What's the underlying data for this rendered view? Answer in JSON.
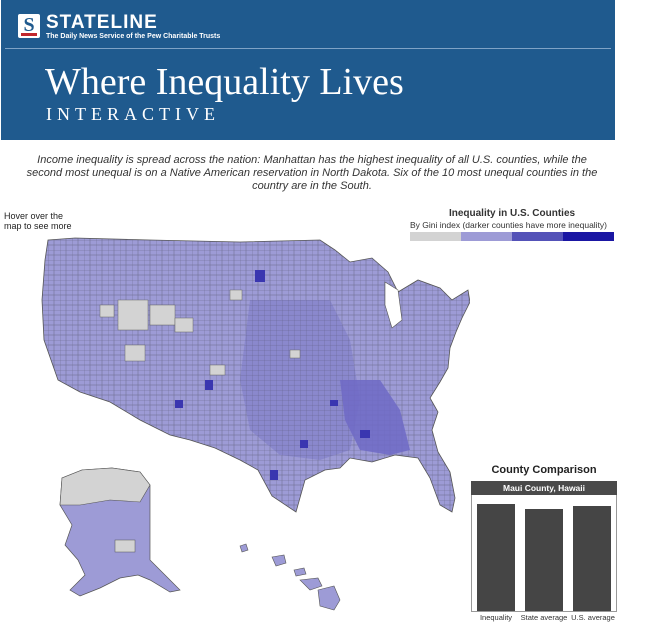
{
  "header": {
    "brand": "STATELINE",
    "tagline": "The Daily News Service of the Pew Charitable Trusts",
    "title": "Where Inequality Lives",
    "subtitle": "INTERACTIVE",
    "background": "#1f5a8e"
  },
  "intro_text": "Income inequality is spread across the nation: Manhattan has the highest inequality of all U.S. counties, while the second most unequal is on a Native American reservation in North Dakota. Six of the 10 most unequal counties in the country are in the South.",
  "hover_note": "Hover over the map to see more information",
  "legend": {
    "title": "Inequality in U.S. Counties",
    "subtitle": "By Gini index (darker counties have more inequality)",
    "colors": [
      "#d3d3d3",
      "#9d9bd6",
      "#5452b8",
      "#1a16a3"
    ]
  },
  "map": {
    "icon": "us-county-map",
    "colors": {
      "light": "#d3d3d3",
      "medium_light": "#9d9bd6",
      "medium": "#6e6ac6",
      "dark": "#3a36b0",
      "darkest": "#1a16a3",
      "border": "#555555"
    }
  },
  "comparison": {
    "title": "County Comparison",
    "county": "Maui County, Hawaii",
    "bars": [
      {
        "label": "Inequality",
        "value": 0.43
      },
      {
        "label": "State average",
        "value": 0.41
      },
      {
        "label": "U.S. average",
        "value": 0.42
      }
    ],
    "bar_color": "#454545"
  }
}
